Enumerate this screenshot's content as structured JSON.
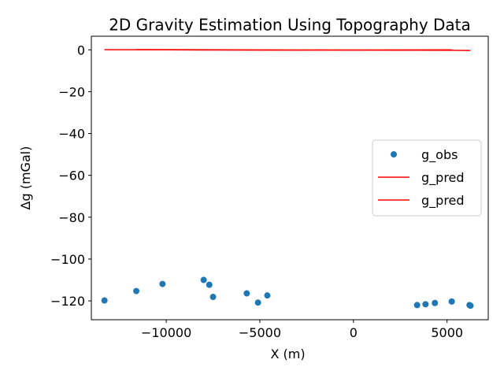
{
  "chart_data": {
    "type": "scatter",
    "title": "2D Gravity Estimation Using Topography Data",
    "xlabel": "X (m)",
    "ylabel": "Δg (mGal)",
    "xlim": [
      -14000,
      7200
    ],
    "ylim": [
      -129,
      6.5
    ],
    "xticks": [
      -10000,
      -5000,
      0,
      5000
    ],
    "xtick_labels": [
      "−10000",
      "−5000",
      "0",
      "5000"
    ],
    "yticks": [
      0,
      -20,
      -40,
      -60,
      -80,
      -100,
      -120
    ],
    "ytick_labels": [
      "0",
      "−20",
      "−40",
      "−60",
      "−80",
      "−100",
      "−120"
    ],
    "grid": false,
    "legend_position": "center-right",
    "colors": {
      "obs": "#1f77b4",
      "pred": "#ff0000"
    },
    "series": [
      {
        "name": "g_obs",
        "kind": "scatter",
        "x": [
          -13300,
          -11600,
          -10200,
          -8000,
          -7700,
          -7500,
          -5700,
          -5100,
          -4600,
          3400,
          3850,
          4350,
          5250,
          6200,
          6250
        ],
        "y": [
          -119.8,
          -115.3,
          -111.9,
          -110.0,
          -112.3,
          -118.1,
          -116.4,
          -120.8,
          -117.4,
          -122.0,
          -121.6,
          -121.0,
          -120.3,
          -122.0,
          -122.3
        ]
      },
      {
        "name": "g_pred",
        "kind": "line",
        "x": [
          -13300,
          -10000,
          -7500,
          -5000,
          -2000,
          0,
          2500,
          5250
        ],
        "y": [
          0.05,
          0.0,
          -0.1,
          -0.15,
          -0.1,
          -0.1,
          -0.05,
          0.0
        ]
      },
      {
        "name": "g_pred",
        "kind": "line",
        "x": [
          -11600,
          -8000,
          -5000,
          0,
          3400,
          5250,
          6250
        ],
        "y": [
          0.1,
          0.05,
          -0.05,
          -0.15,
          -0.2,
          -0.25,
          -0.3
        ]
      }
    ]
  }
}
